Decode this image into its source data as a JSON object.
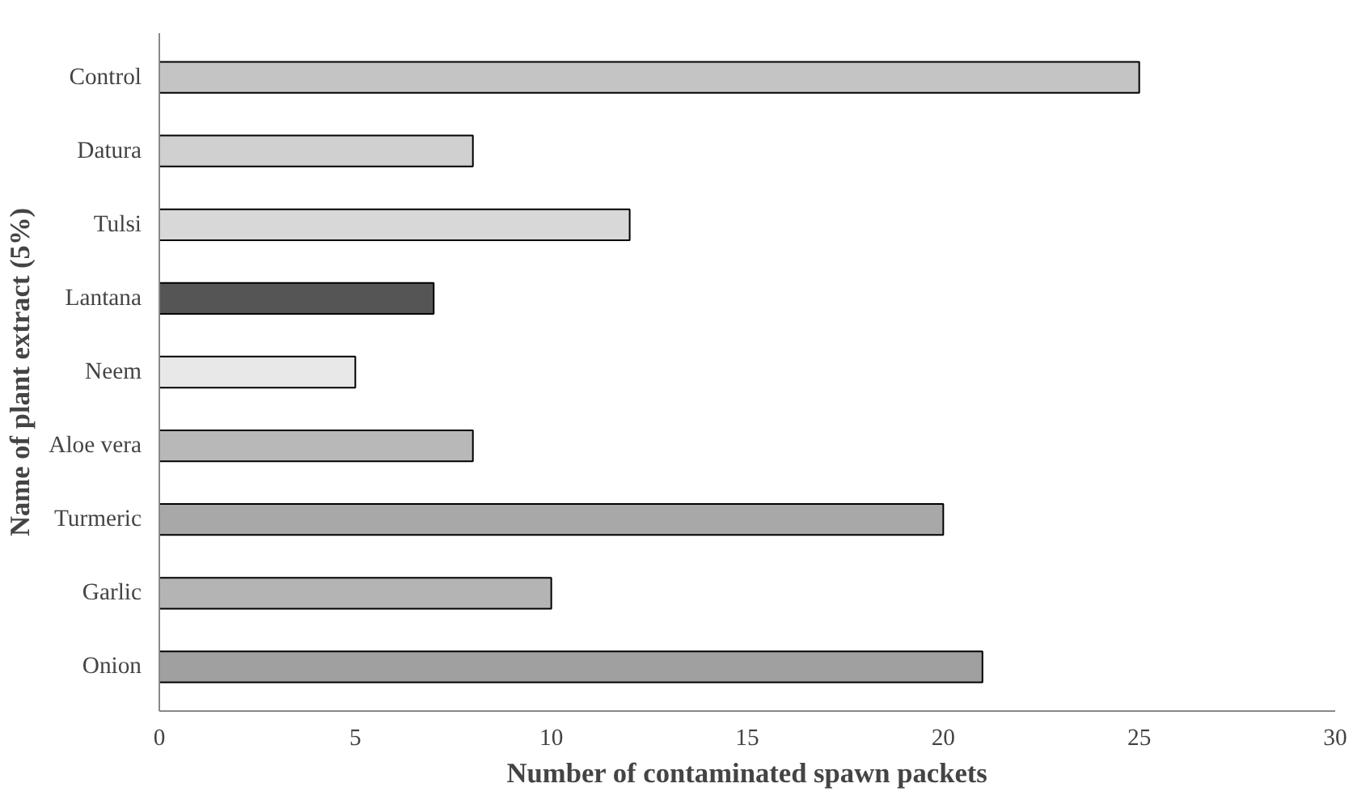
{
  "chart_data": {
    "type": "bar",
    "orientation": "horizontal",
    "xlabel": "Number of contaminated spawn packets",
    "ylabel": "Name of plant extract (5%)",
    "categories": [
      "Control",
      "Datura",
      "Tulsi",
      "Lantana",
      "Neem",
      "Aloe vera",
      "Turmeric",
      "Garlic",
      "Onion"
    ],
    "values": [
      25,
      8,
      12,
      7,
      5,
      8,
      20,
      10,
      21
    ],
    "colors": [
      "#c4c4c4",
      "#d0d0d0",
      "#d8d8d8",
      "#555555",
      "#e8e8e8",
      "#b8b8b8",
      "#a8a8a8",
      "#b4b4b4",
      "#a0a0a0"
    ],
    "xlim": [
      0,
      30
    ],
    "xticks": [
      0,
      5,
      10,
      15,
      20,
      25,
      30
    ],
    "grid": false
  }
}
